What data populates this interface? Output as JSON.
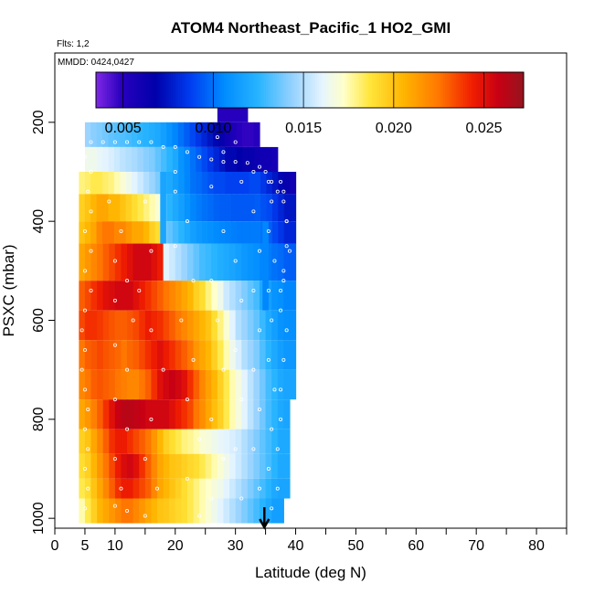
{
  "chart_data": {
    "type": "heatmap",
    "title": "ATOM4 Northeast_Pacific_1 HO2_GMI",
    "flights_label": "Flts: 1,2",
    "dates_label": "MMDD: 0424,0427",
    "xlabel": "Latitude (deg N)",
    "ylabel": "PSXC (mbar)",
    "xlim": [
      0,
      85
    ],
    "ylim": [
      1020,
      60
    ],
    "y_reversed": true,
    "x_ticks": [
      0,
      5,
      10,
      20,
      30,
      40,
      50,
      60,
      70,
      80
    ],
    "x_tick_labels": [
      "0",
      "5",
      "10",
      "20",
      "30",
      "40",
      "50",
      "60",
      "70",
      "80"
    ],
    "x_minor_ticks": [
      15,
      25,
      35,
      45,
      55,
      65,
      75,
      85
    ],
    "y_ticks": [
      200,
      400,
      600,
      800,
      1000
    ],
    "y_tick_labels": [
      "200",
      "400",
      "600",
      "800",
      "1000"
    ],
    "colorbar": {
      "min": 0.0035,
      "max": 0.0272,
      "ticks": [
        0.005,
        0.01,
        0.015,
        0.02,
        0.025
      ],
      "tick_labels": [
        "0.005",
        "0.010",
        "0.015",
        "0.020",
        "0.025"
      ]
    },
    "marker": {
      "type": "down-arrow",
      "x": 34.8
    },
    "lat_grid": [
      4,
      5,
      6,
      7,
      8,
      9,
      10,
      11,
      12,
      13,
      14,
      15,
      16,
      17,
      18,
      19,
      20,
      21,
      22,
      23,
      24,
      25,
      26,
      27,
      28,
      29,
      30,
      31,
      32,
      33,
      34,
      35,
      36,
      37,
      38,
      39
    ],
    "rows": [
      {
        "p0": 170,
        "p1": 200,
        "lat0": 27,
        "lat1": 32,
        "values": [
          0.005
        ]
      },
      {
        "p0": 200,
        "p1": 250,
        "lat0": 5,
        "lat1": 34,
        "values": [
          0.0145,
          0.0142,
          0.014,
          0.0138,
          0.0135,
          0.0133,
          0.0132,
          0.013,
          0.0128,
          0.0126,
          0.0124,
          0.0122,
          0.012,
          0.0115,
          0.011,
          0.0105,
          0.01,
          0.0095,
          0.009,
          0.0085,
          0.008,
          0.0075,
          0.007,
          0.0065,
          0.006,
          0.0055,
          0.005,
          0.0048,
          0.0048,
          0.005
        ]
      },
      {
        "p0": 250,
        "p1": 300,
        "lat0": 5,
        "lat1": 37,
        "values": [
          0.0165,
          0.0165,
          0.0162,
          0.016,
          0.0158,
          0.0155,
          0.0152,
          0.015,
          0.0148,
          0.0145,
          0.0142,
          0.014,
          0.0135,
          0.013,
          0.0125,
          0.012,
          0.011,
          0.0105,
          0.01,
          0.0095,
          0.009,
          0.0085,
          0.008,
          0.0075,
          0.007,
          0.007,
          0.0068,
          0.0065,
          0.0065,
          0.0062,
          0.006,
          0.006,
          0.0058
        ]
      },
      {
        "p0": 300,
        "p1": 345,
        "lat0": 4,
        "lat1": 40,
        "values": [
          0.018,
          0.0182,
          0.0185,
          0.0185,
          0.0182,
          0.018,
          0.0175,
          0.017,
          0.0165,
          0.016,
          0.0155,
          0.015,
          0.0145,
          0.014,
          0.0125,
          0.012,
          0.0115,
          0.011,
          0.0105,
          0.01,
          0.0098,
          0.0095,
          0.0092,
          0.009,
          0.009,
          0.0088,
          0.0088,
          0.0088,
          0.0088,
          0.009,
          0.009,
          0.0085,
          0.008,
          0.0075,
          0.007,
          0.0065,
          0.006
        ]
      },
      {
        "p0": 345,
        "p1": 400,
        "lat0": 4,
        "lat1": 40,
        "values": [
          0.0195,
          0.02,
          0.0205,
          0.021,
          0.021,
          0.0205,
          0.0205,
          0.02,
          0.0195,
          0.019,
          0.0185,
          0.018,
          0.0175,
          0.017,
          0.0135,
          0.0125,
          0.012,
          0.0115,
          0.011,
          0.0105,
          0.0102,
          0.01,
          0.0098,
          0.0096,
          0.0095,
          0.0095,
          0.0094,
          0.0094,
          0.0094,
          0.0094,
          0.0095,
          0.0092,
          0.009,
          0.0085,
          0.008,
          0.0075,
          0.0075
        ]
      },
      {
        "p0": 400,
        "p1": 445,
        "lat0": 4,
        "lat1": 40,
        "values": [
          0.02,
          0.0205,
          0.021,
          0.022,
          0.0225,
          0.0225,
          0.022,
          0.022,
          0.0215,
          0.021,
          0.021,
          0.0205,
          0.0195,
          0.019,
          0.0145,
          0.0135,
          0.013,
          0.0125,
          0.012,
          0.0115,
          0.0112,
          0.011,
          0.0108,
          0.0106,
          0.0105,
          0.0104,
          0.0103,
          0.0102,
          0.0102,
          0.0102,
          0.0102,
          0.01,
          0.0095,
          0.009,
          0.0085,
          0.008,
          0.008
        ]
      },
      {
        "p0": 445,
        "p1": 520,
        "lat0": 4,
        "lat1": 40,
        "values": [
          0.021,
          0.0215,
          0.022,
          0.0225,
          0.023,
          0.0235,
          0.024,
          0.0245,
          0.025,
          0.0255,
          0.0255,
          0.0255,
          0.025,
          0.0245,
          0.016,
          0.0155,
          0.015,
          0.0145,
          0.014,
          0.0135,
          0.013,
          0.0128,
          0.0125,
          0.0122,
          0.012,
          0.0118,
          0.0115,
          0.0112,
          0.011,
          0.0108,
          0.0105,
          0.0102,
          0.01,
          0.0098,
          0.0095,
          0.0095
        ]
      },
      {
        "p0": 520,
        "p1": 580,
        "lat0": 4,
        "lat1": 40,
        "values": [
          0.023,
          0.0235,
          0.024,
          0.0245,
          0.025,
          0.0252,
          0.0255,
          0.0255,
          0.0255,
          0.025,
          0.0245,
          0.024,
          0.0235,
          0.023,
          0.0225,
          0.022,
          0.0215,
          0.021,
          0.0205,
          0.0195,
          0.019,
          0.018,
          0.0172,
          0.0165,
          0.0155,
          0.015,
          0.0145,
          0.014,
          0.0135,
          0.013,
          0.012,
          0.0115,
          0.011,
          0.0108,
          0.0105,
          0.0105
        ]
      },
      {
        "p0": 580,
        "p1": 640,
        "lat0": 4,
        "lat1": 40,
        "values": [
          0.0235,
          0.024,
          0.024,
          0.0238,
          0.0235,
          0.0232,
          0.023,
          0.023,
          0.0232,
          0.0235,
          0.024,
          0.0245,
          0.0242,
          0.024,
          0.0235,
          0.023,
          0.0225,
          0.022,
          0.0215,
          0.021,
          0.0205,
          0.02,
          0.019,
          0.018,
          0.017,
          0.016,
          0.015,
          0.0145,
          0.014,
          0.0135,
          0.0128,
          0.012,
          0.0115,
          0.011,
          0.0108,
          0.0108
        ]
      },
      {
        "p0": 640,
        "p1": 700,
        "lat0": 4,
        "lat1": 40,
        "values": [
          0.0225,
          0.023,
          0.0232,
          0.0235,
          0.0232,
          0.023,
          0.0228,
          0.0225,
          0.0228,
          0.023,
          0.0235,
          0.024,
          0.0245,
          0.025,
          0.0245,
          0.024,
          0.0235,
          0.023,
          0.0225,
          0.0215,
          0.021,
          0.0205,
          0.0195,
          0.0185,
          0.0175,
          0.0165,
          0.0158,
          0.015,
          0.0145,
          0.014,
          0.0132,
          0.0125,
          0.012,
          0.0115,
          0.0112,
          0.0112
        ]
      },
      {
        "p0": 700,
        "p1": 760,
        "lat0": 4,
        "lat1": 40,
        "values": [
          0.022,
          0.0225,
          0.023,
          0.0232,
          0.023,
          0.0228,
          0.0225,
          0.0222,
          0.022,
          0.022,
          0.0225,
          0.023,
          0.024,
          0.025,
          0.0255,
          0.0258,
          0.0255,
          0.025,
          0.024,
          0.023,
          0.022,
          0.0212,
          0.0205,
          0.0195,
          0.0185,
          0.0175,
          0.0168,
          0.016,
          0.0152,
          0.0145,
          0.0138,
          0.013,
          0.0125,
          0.012,
          0.0118,
          0.0118
        ]
      },
      {
        "p0": 760,
        "p1": 820,
        "lat0": 4,
        "lat1": 39,
        "values": [
          0.021,
          0.0215,
          0.0222,
          0.023,
          0.024,
          0.025,
          0.0258,
          0.0262,
          0.0262,
          0.026,
          0.0258,
          0.0255,
          0.0255,
          0.0255,
          0.0255,
          0.025,
          0.0245,
          0.024,
          0.0235,
          0.0225,
          0.0218,
          0.021,
          0.0202,
          0.0195,
          0.0185,
          0.0175,
          0.0168,
          0.016,
          0.0152,
          0.0145,
          0.0138,
          0.013,
          0.0125,
          0.012,
          0.0118
        ]
      },
      {
        "p0": 820,
        "p1": 870,
        "lat0": 4,
        "lat1": 39,
        "values": [
          0.0195,
          0.02,
          0.021,
          0.022,
          0.023,
          0.024,
          0.0245,
          0.0245,
          0.024,
          0.0235,
          0.023,
          0.0225,
          0.0215,
          0.0205,
          0.0195,
          0.019,
          0.0185,
          0.018,
          0.0178,
          0.0175,
          0.017,
          0.0168,
          0.0165,
          0.0162,
          0.016,
          0.0158,
          0.0155,
          0.015,
          0.0145,
          0.014,
          0.0135,
          0.013,
          0.0125,
          0.012,
          0.012
        ]
      },
      {
        "p0": 870,
        "p1": 920,
        "lat0": 4,
        "lat1": 39,
        "values": [
          0.019,
          0.0195,
          0.0205,
          0.0215,
          0.0225,
          0.0235,
          0.0245,
          0.0252,
          0.0255,
          0.025,
          0.024,
          0.023,
          0.022,
          0.021,
          0.0205,
          0.02,
          0.0198,
          0.0195,
          0.0192,
          0.019,
          0.0185,
          0.018,
          0.0175,
          0.017,
          0.0165,
          0.016,
          0.0155,
          0.015,
          0.0145,
          0.014,
          0.0135,
          0.013,
          0.0125,
          0.012,
          0.012
        ]
      },
      {
        "p0": 920,
        "p1": 960,
        "lat0": 4,
        "lat1": 39,
        "values": [
          0.0185,
          0.019,
          0.02,
          0.021,
          0.022,
          0.023,
          0.024,
          0.0245,
          0.0245,
          0.024,
          0.0235,
          0.023,
          0.022,
          0.021,
          0.0205,
          0.02,
          0.0195,
          0.019,
          0.0185,
          0.018,
          0.0175,
          0.0172,
          0.0168,
          0.0165,
          0.016,
          0.0155,
          0.015,
          0.0145,
          0.014,
          0.0135,
          0.013,
          0.0125,
          0.012,
          0.0118,
          0.0118
        ]
      },
      {
        "p0": 960,
        "p1": 1010,
        "lat0": 4,
        "lat1": 38,
        "values": [
          0.0175,
          0.0185,
          0.0195,
          0.0205,
          0.021,
          0.0215,
          0.022,
          0.0225,
          0.0225,
          0.022,
          0.0215,
          0.021,
          0.0205,
          0.02,
          0.0198,
          0.0195,
          0.0192,
          0.019,
          0.0185,
          0.018,
          0.0175,
          0.017,
          0.0165,
          0.016,
          0.0155,
          0.015,
          0.0145,
          0.014,
          0.0135,
          0.013,
          0.0125,
          0.012,
          0.0115,
          0.0115
        ]
      }
    ],
    "gaps": [
      {
        "p0": 400,
        "p1": 580,
        "lat0": 34.5,
        "lat1": 35.5,
        "value": 0.0105
      },
      {
        "p0": 300,
        "p1": 445,
        "lat0": 17.5,
        "lat1": 18.5,
        "value": 0.0118
      }
    ],
    "track_points": [
      [
        6,
        240
      ],
      [
        8,
        240
      ],
      [
        10,
        240
      ],
      [
        12,
        240
      ],
      [
        14,
        240
      ],
      [
        16,
        240
      ],
      [
        18,
        250
      ],
      [
        20,
        250
      ],
      [
        22,
        260
      ],
      [
        24,
        270
      ],
      [
        26,
        275
      ],
      [
        28,
        280
      ],
      [
        30,
        280
      ],
      [
        32,
        282
      ],
      [
        34,
        290
      ],
      [
        35,
        300
      ],
      [
        36,
        320
      ],
      [
        37,
        340
      ],
      [
        38,
        360
      ],
      [
        38.5,
        400
      ],
      [
        38.5,
        450
      ],
      [
        38,
        500
      ],
      [
        37.5,
        540
      ],
      [
        5,
        270
      ],
      [
        6,
        300
      ],
      [
        5.5,
        340
      ],
      [
        6,
        380
      ],
      [
        5,
        420
      ],
      [
        6,
        460
      ],
      [
        5,
        500
      ],
      [
        6,
        540
      ],
      [
        5,
        580
      ],
      [
        4.5,
        620
      ],
      [
        5,
        660
      ],
      [
        4.5,
        700
      ],
      [
        5,
        740
      ],
      [
        5.5,
        780
      ],
      [
        5,
        820
      ],
      [
        5.5,
        860
      ],
      [
        5,
        900
      ],
      [
        5.5,
        940
      ],
      [
        5,
        980
      ],
      [
        9,
        360
      ],
      [
        11,
        420
      ],
      [
        10,
        480
      ],
      [
        12,
        520
      ],
      [
        10,
        560
      ],
      [
        13,
        600
      ],
      [
        10,
        650
      ],
      [
        12,
        700
      ],
      [
        10,
        760
      ],
      [
        12,
        820
      ],
      [
        10,
        880
      ],
      [
        11,
        940
      ],
      [
        10,
        975
      ],
      [
        12,
        985
      ],
      [
        15,
        360
      ],
      [
        16,
        460
      ],
      [
        14,
        540
      ],
      [
        16,
        620
      ],
      [
        18,
        700
      ],
      [
        16,
        800
      ],
      [
        15,
        880
      ],
      [
        17,
        940
      ],
      [
        15,
        995
      ],
      [
        20,
        300
      ],
      [
        20,
        340
      ],
      [
        22,
        400
      ],
      [
        20,
        450
      ],
      [
        23,
        520
      ],
      [
        21,
        600
      ],
      [
        23,
        680
      ],
      [
        22,
        760
      ],
      [
        24,
        840
      ],
      [
        22,
        920
      ],
      [
        24,
        995
      ],
      [
        27,
        230
      ],
      [
        28,
        260
      ],
      [
        26,
        330
      ],
      [
        28,
        420
      ],
      [
        26,
        520
      ],
      [
        27,
        600
      ],
      [
        28,
        700
      ],
      [
        26,
        800
      ],
      [
        28,
        880
      ],
      [
        26,
        960
      ],
      [
        30,
        240
      ],
      [
        31,
        320
      ],
      [
        30,
        480
      ],
      [
        31,
        560
      ],
      [
        30,
        660
      ],
      [
        31,
        760
      ],
      [
        30,
        860
      ],
      [
        31,
        960
      ],
      [
        33,
        300
      ],
      [
        33,
        380
      ],
      [
        34,
        460
      ],
      [
        33,
        540
      ],
      [
        34,
        620
      ],
      [
        33,
        700
      ],
      [
        34,
        780
      ],
      [
        33,
        860
      ],
      [
        34,
        940
      ],
      [
        35.5,
        320
      ],
      [
        36,
        360
      ],
      [
        35.5,
        420
      ],
      [
        36.5,
        480
      ],
      [
        35.5,
        540
      ],
      [
        36,
        600
      ],
      [
        35.5,
        680
      ],
      [
        36.5,
        740
      ],
      [
        36,
        820
      ],
      [
        35.5,
        900
      ],
      [
        36,
        980
      ],
      [
        37.5,
        320
      ],
      [
        38,
        340
      ],
      [
        38.5,
        400
      ],
      [
        39,
        460
      ],
      [
        38,
        520
      ],
      [
        37.5,
        580
      ],
      [
        38.5,
        620
      ],
      [
        38,
        680
      ],
      [
        37.5,
        740
      ],
      [
        37.5,
        800
      ],
      [
        37,
        860
      ],
      [
        37,
        940
      ]
    ]
  }
}
